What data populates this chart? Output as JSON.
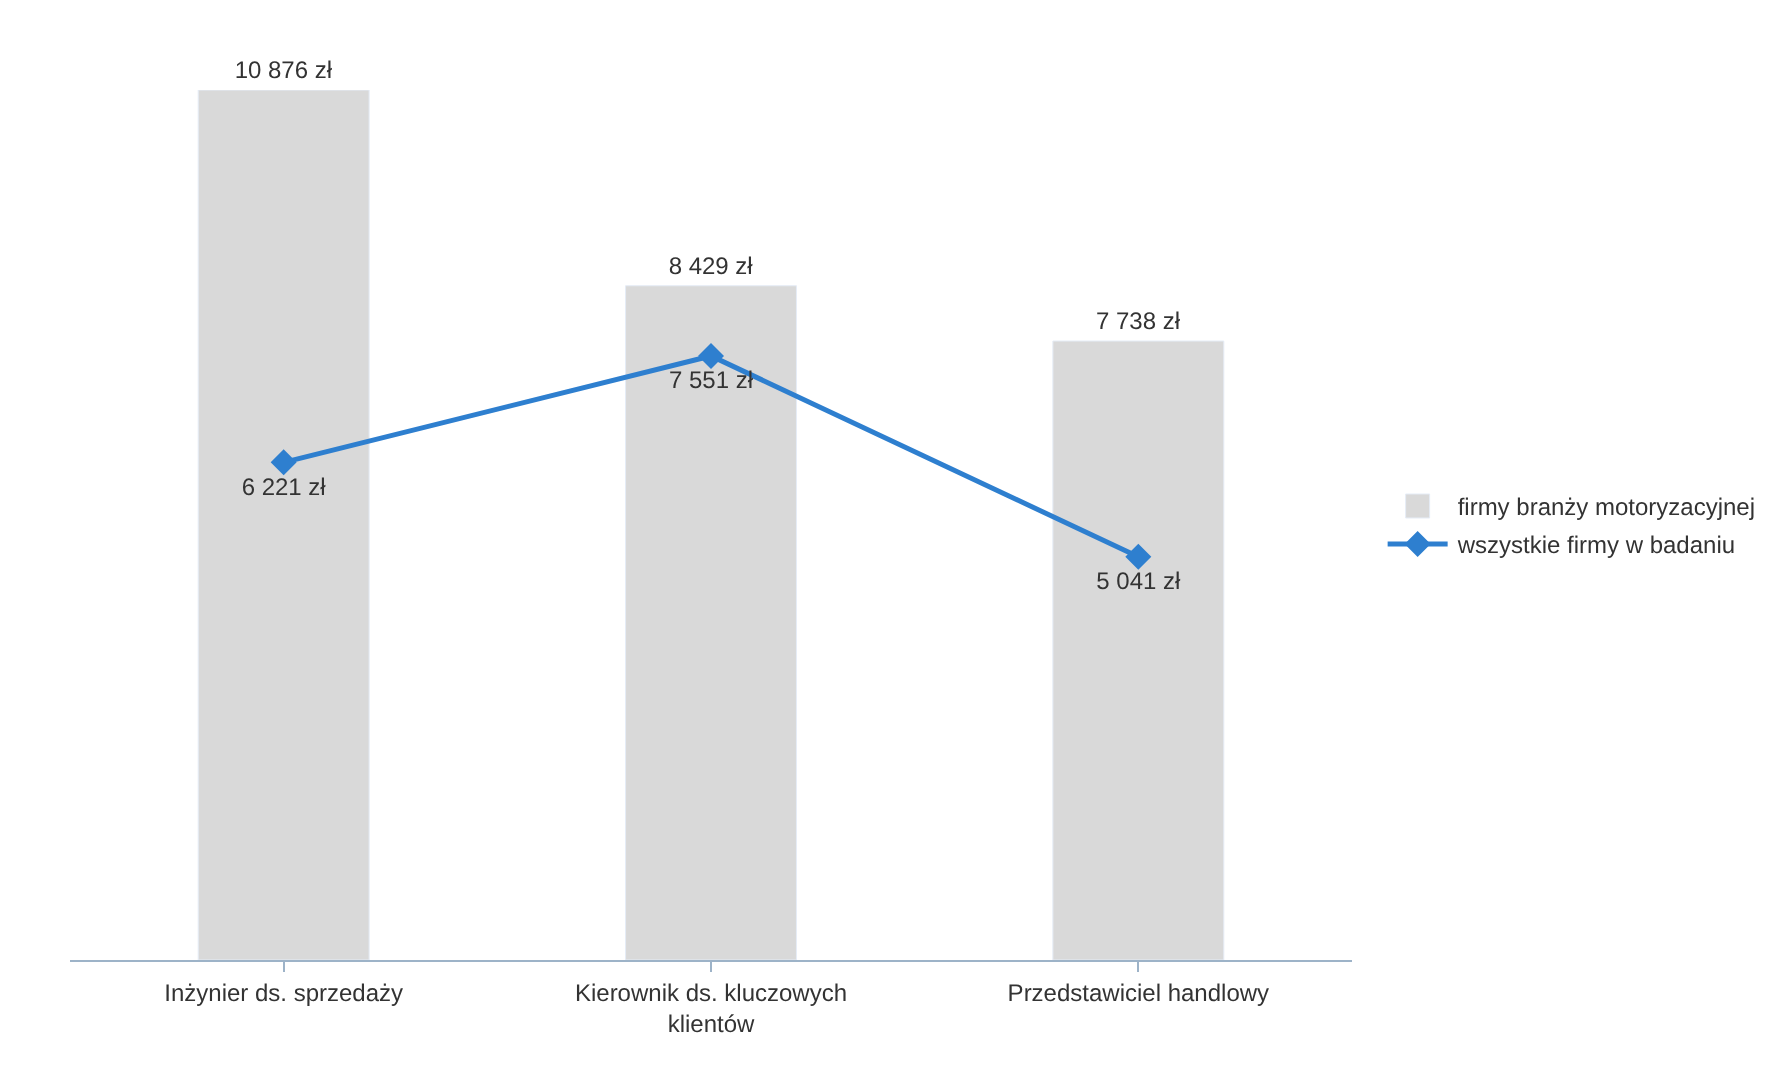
{
  "chart_data": {
    "type": "bar",
    "categories": [
      "Inżynier ds. sprzedaży",
      "Kierownik ds. kluczowych klientów",
      "Przedstawiciel handlowy"
    ],
    "series": [
      {
        "name": "firmy branży motoryzacyjnej",
        "color": "#d9d9d9",
        "values": [
          10876,
          8429,
          7738
        ],
        "value_labels": [
          "10 876 zł",
          "8 429 zł",
          "7 738 zł"
        ]
      },
      {
        "name": "wszystkie firmy w badaniu",
        "type": "line",
        "color": "#2e7fcf",
        "marker": "diamond",
        "values": [
          6221,
          7551,
          5041
        ],
        "value_labels": [
          "6 221 zł",
          "7 551 zł",
          "5 041 zł"
        ]
      }
    ],
    "legend": "right"
  }
}
